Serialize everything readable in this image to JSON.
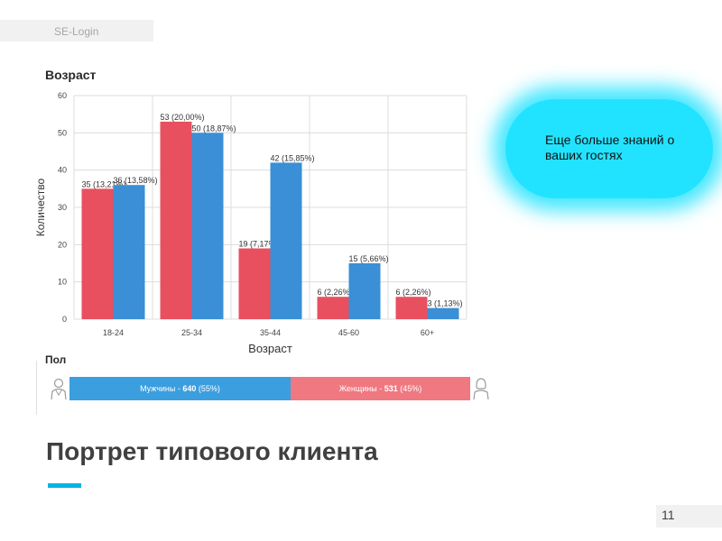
{
  "brand": {
    "text": "SE-Login"
  },
  "callout": {
    "text": "Еще больше знаний о ваших гостях"
  },
  "chart_data": {
    "type": "bar",
    "title": "Возраст",
    "xlabel": "Возраст",
    "ylabel": "Количество",
    "categories": [
      "18-24",
      "25-34",
      "35-44",
      "45-60",
      "60+"
    ],
    "series": [
      {
        "name": "",
        "color": "#e8505f",
        "values": [
          35,
          53,
          19,
          6,
          6
        ],
        "labels": [
          "35 (13,21%)",
          "53 (20,00%)",
          "19 (7,17%)",
          "6 (2,26%)",
          "6 (2,26%)"
        ]
      },
      {
        "name": "",
        "color": "#3a8fd6",
        "values": [
          36,
          50,
          42,
          15,
          3
        ],
        "labels": [
          "36 (13,58%)",
          "50 (18,87%)",
          "42 (15,85%)",
          "15 (5,66%)",
          "3 (1,13%)"
        ]
      }
    ],
    "ylim": [
      0,
      60
    ],
    "yticks": [
      0,
      10,
      20,
      30,
      40,
      50,
      60
    ],
    "grid": true
  },
  "gender": {
    "label": "Пол",
    "male": {
      "name": "Мужчины",
      "count": "640",
      "percent": "(55%)",
      "share": 0.55,
      "color": "#3b9ede"
    },
    "female": {
      "name": "Женщины",
      "count": "531",
      "percent": "(45%)",
      "share": 0.45,
      "color": "#f07880"
    }
  },
  "page": {
    "title": "Портрет типового клиента",
    "number": "11"
  }
}
